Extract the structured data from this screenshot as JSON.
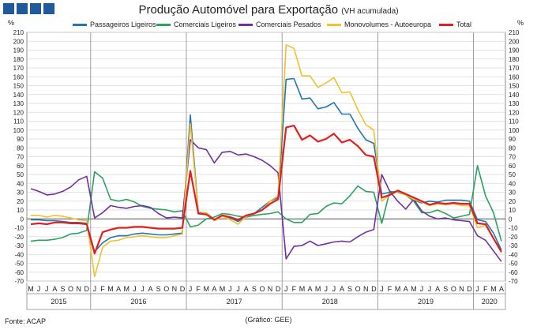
{
  "header": {
    "title": "Produção Automóvel para Exportação",
    "subtitle": "(VH acumulada)",
    "percent_left": "%",
    "percent_right": "%"
  },
  "footer": {
    "source": "Fonte: ACAP",
    "credit": "(Gráfico: GEE)"
  },
  "colors": {
    "passageiros": "#1f77b4",
    "comerciais_ligeiros": "#2ca25f",
    "comerciais_pesados": "#7030a0",
    "monovolumes": "#f2c12e",
    "total": "#e02020"
  },
  "chart_data": {
    "type": "line",
    "title": "Produção Automóvel para Exportação",
    "ylim": [
      -70,
      210
    ],
    "y_ticks": [
      -70,
      -60,
      -50,
      -40,
      -30,
      -20,
      -10,
      0,
      10,
      20,
      30,
      40,
      50,
      60,
      70,
      80,
      90,
      100,
      110,
      120,
      130,
      140,
      150,
      160,
      170,
      180,
      190,
      200,
      210
    ],
    "grid": true,
    "legend_position": "top",
    "month_labels": [
      "M",
      "J",
      "J",
      "A",
      "S",
      "O",
      "N",
      "D",
      "J",
      "F",
      "M",
      "A",
      "M",
      "J",
      "J",
      "A",
      "S",
      "O",
      "N",
      "D",
      "J",
      "F",
      "M",
      "A",
      "M",
      "J",
      "J",
      "A",
      "S",
      "O",
      "N",
      "D",
      "J",
      "F",
      "M",
      "A",
      "M",
      "J",
      "J",
      "A",
      "S",
      "O",
      "N",
      "D",
      "J",
      "F",
      "M",
      "A",
      "M",
      "J",
      "J",
      "A",
      "S",
      "O",
      "N",
      "D",
      "J",
      "F",
      "M",
      "A"
    ],
    "years": [
      {
        "label": "2015",
        "start": 0,
        "end": 7
      },
      {
        "label": "2016",
        "start": 8,
        "end": 19
      },
      {
        "label": "2017",
        "start": 20,
        "end": 31
      },
      {
        "label": "2018",
        "start": 32,
        "end": 43
      },
      {
        "label": "2019",
        "start": 44,
        "end": 55
      },
      {
        "label": "2020",
        "start": 56,
        "end": 59
      }
    ],
    "series": [
      {
        "name": "Passageiros Ligeiros",
        "key": "passageiros",
        "values": [
          -1,
          -1,
          -2,
          -2,
          -3,
          -4,
          -4,
          -5,
          -37,
          -27,
          -21,
          -19,
          -19,
          -17,
          -16,
          -17,
          -18,
          -18,
          -17,
          -16,
          117,
          7,
          7,
          -1,
          4,
          1,
          -3,
          3,
          6,
          13,
          20,
          24,
          157,
          158,
          135,
          136,
          124,
          126,
          131,
          118,
          118,
          102,
          89,
          85,
          28,
          30,
          31,
          27,
          21,
          18,
          20,
          19,
          21,
          21,
          21,
          20,
          -1,
          -3,
          -16,
          -35
        ]
      },
      {
        "name": "Comerciais Ligeiros",
        "key": "comerciais_ligeiros",
        "values": [
          -25,
          -24,
          -24,
          -23,
          -21,
          -17,
          -16,
          -13,
          53,
          46,
          22,
          20,
          22,
          19,
          14,
          12,
          11,
          10,
          8,
          9,
          -9,
          -7,
          0,
          2,
          6,
          5,
          3,
          2,
          4,
          5,
          6,
          8,
          0,
          -4,
          -4,
          5,
          6,
          14,
          18,
          17,
          26,
          37,
          31,
          30,
          -5,
          31,
          30,
          27,
          20,
          7,
          7,
          10,
          6,
          1,
          3,
          5,
          60,
          26,
          7,
          -25
        ]
      },
      {
        "name": "Comerciais Pesados",
        "key": "comerciais_pesados",
        "values": [
          34,
          31,
          27,
          28,
          31,
          36,
          44,
          48,
          1,
          7,
          15,
          13,
          12,
          14,
          15,
          13,
          6,
          1,
          2,
          1,
          89,
          80,
          78,
          63,
          75,
          76,
          72,
          73,
          70,
          66,
          60,
          52,
          -45,
          -31,
          -30,
          -25,
          -30,
          -28,
          -26,
          -25,
          -26,
          -20,
          -15,
          -12,
          50,
          31,
          20,
          11,
          22,
          9,
          3,
          0,
          1,
          -1,
          -2,
          -3,
          -19,
          -24,
          -36,
          -48
        ]
      },
      {
        "name": "Monovolumes - Autoeuropa",
        "key": "monovolumes",
        "values": [
          4,
          4,
          2,
          4,
          3,
          1,
          -1,
          -2,
          -65,
          -32,
          -25,
          -24,
          -21,
          -20,
          -19,
          -20,
          -21,
          -21,
          -19,
          -17,
          107,
          6,
          7,
          -2,
          3,
          -1,
          -6,
          3,
          6,
          10,
          20,
          26,
          196,
          192,
          161,
          161,
          148,
          153,
          159,
          142,
          143,
          123,
          106,
          100,
          20,
          27,
          31,
          27,
          22,
          19,
          15,
          17,
          16,
          17,
          15,
          15,
          -10,
          -7,
          -22,
          -38
        ]
      },
      {
        "name": "Total",
        "key": "total",
        "values": [
          -6,
          -5,
          -6,
          -4,
          -4,
          -5,
          -5,
          -6,
          -39,
          -15,
          -12,
          -10,
          -10,
          -9,
          -9,
          -10,
          -11,
          -11,
          -11,
          -10,
          54,
          6,
          5,
          -1,
          4,
          2,
          -1,
          4,
          6,
          10,
          17,
          22,
          103,
          105,
          89,
          94,
          87,
          90,
          96,
          86,
          89,
          82,
          72,
          70,
          24,
          27,
          32,
          28,
          24,
          20,
          16,
          18,
          17,
          18,
          17,
          17,
          -5,
          -6,
          -22,
          -37
        ]
      }
    ]
  }
}
